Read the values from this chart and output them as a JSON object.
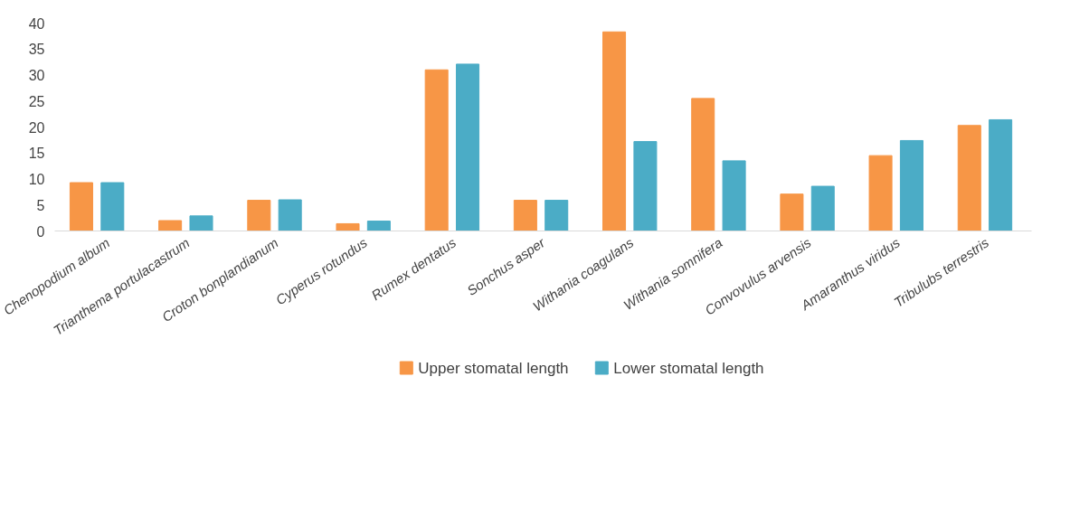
{
  "chart_data": {
    "type": "bar",
    "categories": [
      "Chenopodium album",
      "Trianthema portulacastrum",
      "Croton bonplandianum",
      "Cyperus rotundus",
      "Rumex dentatus",
      "Sonchus asper",
      "Withania coagulans",
      "Withania somnifera",
      "Convovulus arvensis",
      "Amaranthus viridus",
      "Tribulubs terrestris"
    ],
    "series": [
      {
        "name": "Upper stomatal length",
        "color": "#f79646",
        "values": [
          9.3,
          2.0,
          5.9,
          1.4,
          31.0,
          5.9,
          38.3,
          25.5,
          7.1,
          14.5,
          20.3
        ]
      },
      {
        "name": "Lower stomatal length",
        "color": "#4bacc6",
        "values": [
          9.3,
          2.9,
          6.0,
          1.9,
          32.1,
          5.9,
          17.2,
          13.5,
          8.6,
          17.4,
          21.4
        ]
      }
    ],
    "ylim": [
      0,
      40
    ],
    "yticks": [
      0,
      5,
      10,
      15,
      20,
      25,
      30,
      35,
      40
    ],
    "grid": false,
    "legend": "bottom"
  }
}
